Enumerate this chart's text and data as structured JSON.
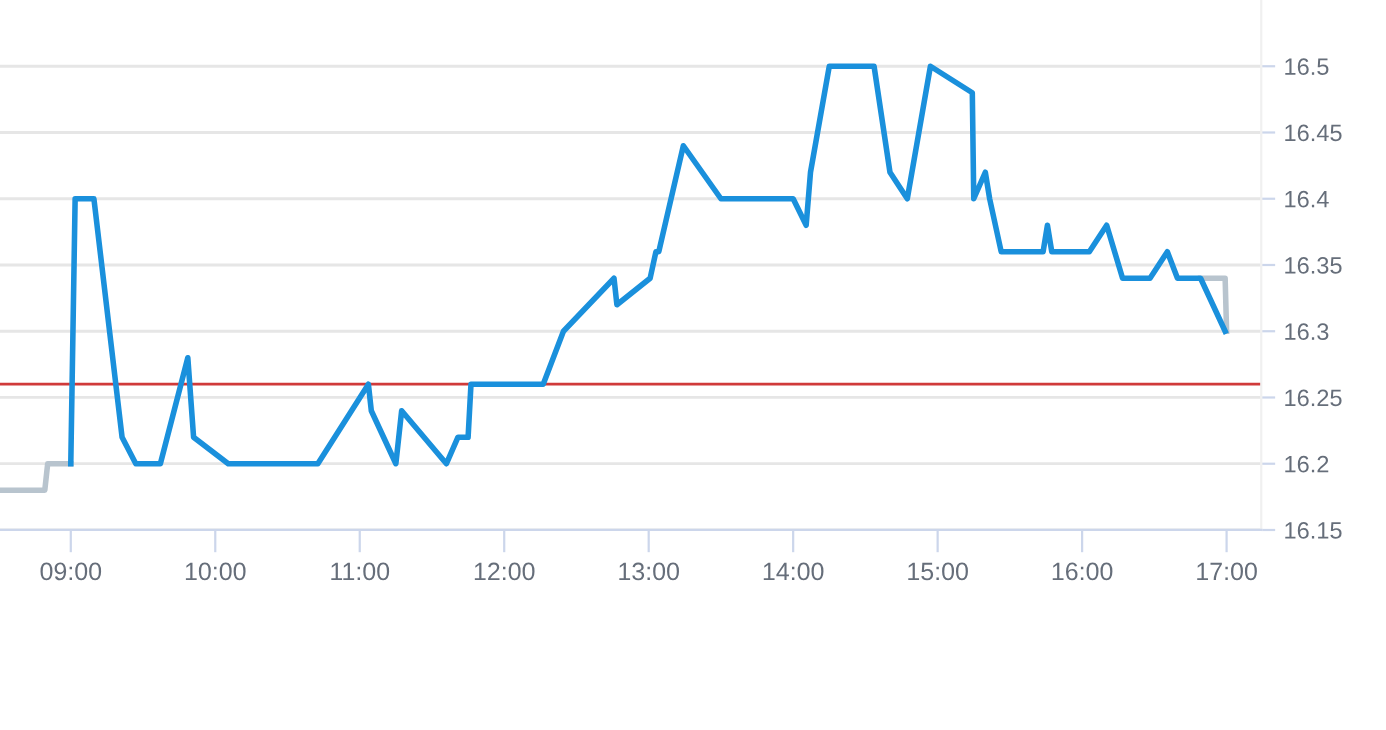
{
  "chart_data": {
    "type": "line",
    "xlim": [
      8.51,
      17.24
    ],
    "ylim": [
      16.15,
      16.55
    ],
    "xticks": [
      {
        "value": 9,
        "label": "09:00"
      },
      {
        "value": 10,
        "label": "10:00"
      },
      {
        "value": 11,
        "label": "11:00"
      },
      {
        "value": 12,
        "label": "12:00"
      },
      {
        "value": 13,
        "label": "13:00"
      },
      {
        "value": 14,
        "label": "14:00"
      },
      {
        "value": 15,
        "label": "15:00"
      },
      {
        "value": 16,
        "label": "16:00"
      },
      {
        "value": 17,
        "label": "17:00"
      }
    ],
    "yticks": [
      16.15,
      16.2,
      16.25,
      16.3,
      16.35,
      16.4,
      16.45,
      16.5
    ],
    "grid": "y",
    "marker": "none",
    "line_style": "solid",
    "ref_lines": [
      {
        "axis": "y",
        "value": 16.26,
        "color": "#d03a3a"
      }
    ],
    "series": [
      {
        "color": "#b8c4ce",
        "x": [
          8.51,
          8.82,
          8.84,
          8.99,
          9.0
        ],
        "values": [
          16.18,
          16.18,
          16.2,
          16.2,
          16.2
        ]
      },
      {
        "color": "#b8c4ce",
        "x": [
          16.82,
          16.99,
          17.0
        ],
        "values": [
          16.34,
          16.34,
          16.3
        ]
      },
      {
        "color": "#1a90dc",
        "x": [
          9.0,
          9.03,
          9.16,
          9.355,
          9.45,
          9.62,
          9.81,
          9.85,
          10.09,
          10.71,
          11.06,
          11.08,
          11.25,
          11.29,
          11.6,
          11.68,
          11.75,
          11.77,
          12.27,
          12.41,
          12.76,
          12.78,
          13.01,
          13.05,
          13.07,
          13.24,
          13.5,
          14.0,
          14.09,
          14.12,
          14.25,
          14.56,
          14.67,
          14.79,
          14.95,
          15.24,
          15.25,
          15.33,
          15.36,
          15.44,
          15.73,
          15.76,
          15.79,
          16.05,
          16.17,
          16.28,
          16.47,
          16.59,
          16.66,
          16.82,
          16.99
        ],
        "values": [
          16.2,
          16.4,
          16.4,
          16.22,
          16.2,
          16.2,
          16.28,
          16.22,
          16.2,
          16.2,
          16.26,
          16.24,
          16.2,
          16.24,
          16.2,
          16.22,
          16.22,
          16.26,
          16.26,
          16.3,
          16.34,
          16.32,
          16.34,
          16.36,
          16.36,
          16.44,
          16.4,
          16.4,
          16.38,
          16.42,
          16.5,
          16.5,
          16.42,
          16.4,
          16.5,
          16.48,
          16.4,
          16.42,
          16.4,
          16.36,
          16.36,
          16.38,
          16.36,
          16.36,
          16.38,
          16.34,
          16.34,
          16.36,
          16.34,
          16.34,
          16.3
        ]
      }
    ]
  }
}
